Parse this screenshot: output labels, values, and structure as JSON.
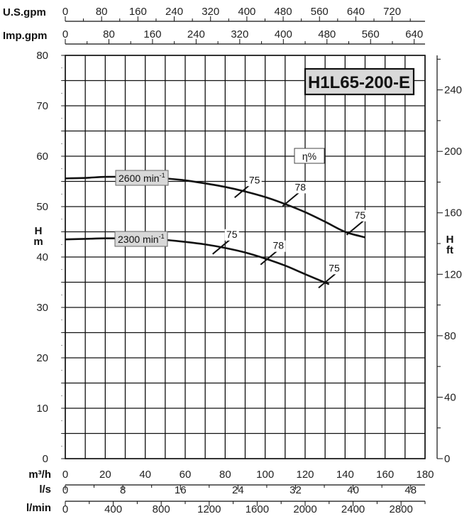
{
  "chart_data": {
    "type": "line",
    "title": "H1L65-200-E",
    "efficiency_legend": "η%",
    "x_axes": {
      "us_gpm": {
        "label": "U.S.gpm",
        "ticks": [
          "0",
          "80",
          "160",
          "240",
          "320",
          "400",
          "480",
          "560",
          "640",
          "720"
        ]
      },
      "imp_gpm": {
        "label": "Imp.gpm",
        "ticks": [
          "0",
          "80",
          "160",
          "240",
          "320",
          "400",
          "480",
          "560",
          "640"
        ]
      },
      "m3h": {
        "label": "m³/h",
        "ticks": [
          "0",
          "20",
          "40",
          "60",
          "80",
          "100",
          "120",
          "140",
          "160",
          "180"
        ]
      },
      "ls": {
        "label": "l/s",
        "ticks": [
          "0",
          "8",
          "16",
          "24",
          "32",
          "40",
          "48"
        ]
      },
      "lmin": {
        "label": "l/min",
        "ticks": [
          "0",
          "400",
          "800",
          "1200",
          "1600",
          "2000",
          "2400",
          "2800"
        ]
      }
    },
    "y_axes": {
      "left": {
        "label_top": "H",
        "label_bottom": "m",
        "ticks": [
          "0",
          "10",
          "20",
          "30",
          "40",
          "50",
          "60",
          "70",
          "80"
        ]
      },
      "right": {
        "label_top": "H",
        "label_bottom": "ft",
        "ticks": [
          "0",
          "40",
          "80",
          "120",
          "160",
          "200",
          "240"
        ]
      }
    },
    "xlim": [
      0,
      180
    ],
    "ylim": [
      0,
      80
    ],
    "grid": true,
    "series": [
      {
        "name": "2600 min-1",
        "label_main": "2600 min",
        "label_sup": "-1",
        "x": [
          0,
          10,
          20,
          30,
          40,
          50,
          60,
          70,
          80,
          90,
          100,
          110,
          120,
          130,
          140,
          150
        ],
        "y": [
          55.6,
          55.7,
          55.9,
          55.9,
          55.8,
          55.6,
          55.2,
          54.6,
          53.9,
          53.0,
          51.9,
          50.5,
          48.9,
          47.0,
          45.0,
          43.9
        ]
      },
      {
        "name": "2300 min-1",
        "label_main": "2300 min",
        "label_sup": "-1",
        "x": [
          0,
          10,
          20,
          30,
          40,
          50,
          60,
          70,
          80,
          90,
          100,
          110,
          120,
          132
        ],
        "y": [
          43.5,
          43.6,
          43.7,
          43.7,
          43.6,
          43.4,
          43.0,
          42.5,
          41.8,
          40.9,
          39.7,
          38.3,
          36.6,
          34.6
        ]
      }
    ],
    "efficiency_marks": [
      {
        "series": "2600 min-1",
        "x": 89,
        "y": 53.2,
        "label": "75"
      },
      {
        "series": "2600 min-1",
        "x": 113,
        "y": 51.5,
        "label": "78"
      },
      {
        "series": "2600 min-1",
        "x": 145,
        "y": 45.8,
        "label": "75"
      },
      {
        "series": "2300 min-1",
        "x": 78,
        "y": 42.0,
        "label": "75"
      },
      {
        "series": "2300 min-1",
        "x": 102,
        "y": 39.9,
        "label": "78"
      },
      {
        "series": "2300 min-1",
        "x": 131,
        "y": 35.3,
        "label": "75"
      }
    ]
  }
}
